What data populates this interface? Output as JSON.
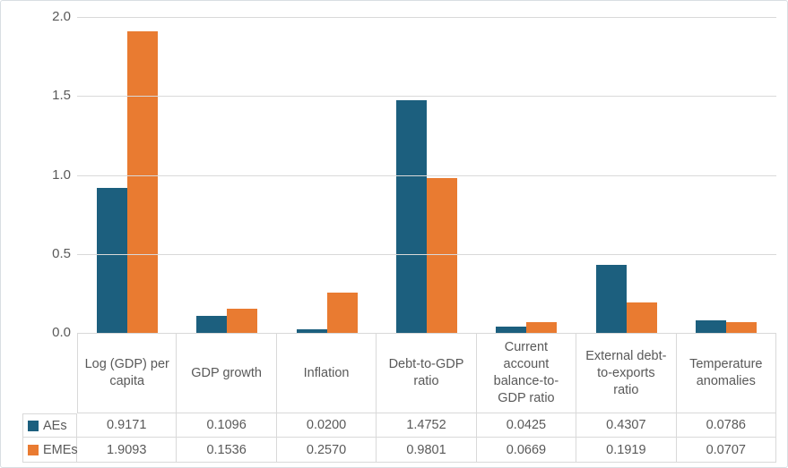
{
  "chart_data": {
    "type": "bar",
    "title": "",
    "xlabel": "",
    "ylabel": "",
    "categories": [
      "Log (GDP) per capita",
      "GDP growth",
      "Inflation",
      "Debt-to-GDP ratio",
      "Current account balance-to-GDP ratio",
      "External debt-to-exports ratio",
      "Temperature anomalies"
    ],
    "series": [
      {
        "name": "AEs",
        "color": "#1c5f7e",
        "values": [
          0.9171,
          0.1096,
          0.02,
          1.4752,
          0.0425,
          0.4307,
          0.0786
        ],
        "labels": [
          "0.9171",
          "0.1096",
          "0.0200",
          "1.4752",
          "0.0425",
          "0.4307",
          "0.0786"
        ]
      },
      {
        "name": "EMEs",
        "color": "#e97b31",
        "values": [
          1.9093,
          0.1536,
          0.257,
          0.9801,
          0.0669,
          0.1919,
          0.0707
        ],
        "labels": [
          "1.9093",
          "0.1536",
          "0.2570",
          "0.9801",
          "0.0669",
          "0.1919",
          "0.0707"
        ]
      }
    ],
    "ylim": [
      0,
      2
    ],
    "yticks": [
      "2.0",
      "1.5",
      "1.0",
      "0.5",
      "0.0"
    ],
    "grid": true,
    "legend_position": "data-table-left"
  },
  "colors": {
    "text": "#595959",
    "gridline": "#d9d9d9",
    "table_border": "#d9d9d9",
    "canvas_border": "#d9dee3",
    "background": "#ffffff",
    "aes": "#1c5f7e",
    "emes": "#e97b31"
  }
}
